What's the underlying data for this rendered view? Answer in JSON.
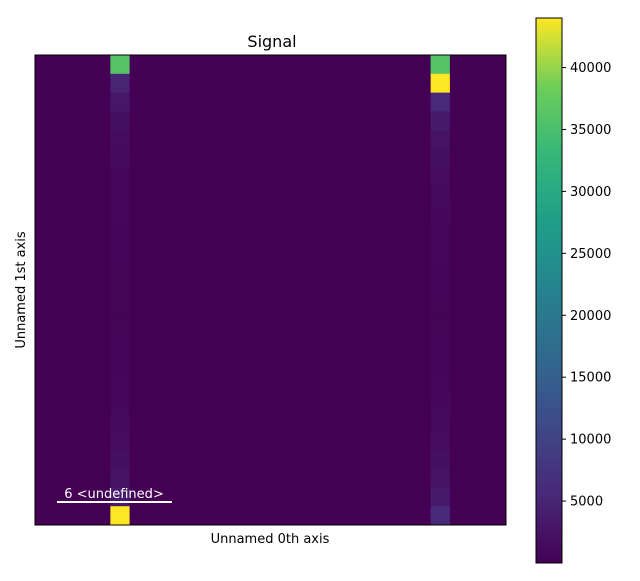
{
  "chart_data": {
    "type": "heatmap",
    "title": "Signal",
    "xlabel": "Unnamed 0th axis",
    "ylabel": "Unnamed 1st axis",
    "grid": false,
    "n_cols": 25,
    "n_rows": 25,
    "colormap": "viridis",
    "clim": [
      0,
      44000
    ],
    "colorbar": {
      "ticks": [
        5000,
        10000,
        15000,
        20000,
        25000,
        30000,
        35000,
        40000
      ],
      "tick_labels": [
        "5000",
        "10000",
        "15000",
        "20000",
        "25000",
        "30000",
        "35000",
        "40000"
      ]
    },
    "scalebar": {
      "label": "6 <undefined>"
    },
    "background_value": 0,
    "bright_columns": [
      {
        "col": 4,
        "values": [
          36000,
          5000,
          3000,
          2000,
          1500,
          1200,
          1000,
          900,
          800,
          700,
          600,
          500,
          500,
          500,
          500,
          600,
          700,
          800,
          1000,
          1200,
          1500,
          2000,
          2500,
          3500,
          44000
        ]
      },
      {
        "col": 21,
        "values": [
          36000,
          44000,
          5500,
          3500,
          2500,
          2000,
          1500,
          1200,
          1000,
          900,
          800,
          700,
          600,
          500,
          500,
          600,
          700,
          800,
          1000,
          1200,
          1500,
          2000,
          2500,
          3500,
          6000
        ]
      }
    ]
  }
}
